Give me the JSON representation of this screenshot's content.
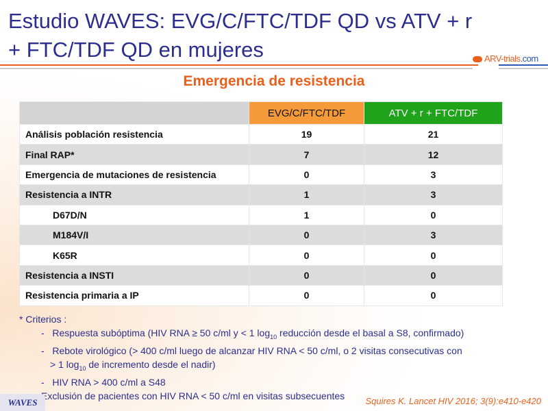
{
  "title": "Estudio WAVES: EVG/C/FTC/TDF QD vs ATV + r + FTC/TDF QD en mujeres",
  "logo": {
    "name": "ARV-trials",
    "suffix": ".com"
  },
  "subtitle": "Emergencia de resistencia",
  "table": {
    "headers": [
      "",
      "EVG/C/FTC/TDF",
      "ATV + r + FTC/TDF"
    ],
    "rows": [
      {
        "label": "Análisis población resistencia",
        "a": "19",
        "b": "21",
        "indent": false
      },
      {
        "label": "Final RAP*",
        "a": "7",
        "b": "12",
        "indent": false
      },
      {
        "label": "Emergencia de mutaciones de resistencia",
        "a": "0",
        "b": "3",
        "indent": false
      },
      {
        "label": "Resistencia a INTR",
        "a": "1",
        "b": "3",
        "indent": false
      },
      {
        "label": "D67D/N",
        "a": "1",
        "b": "0",
        "indent": true
      },
      {
        "label": "M184V/I",
        "a": "0",
        "b": "3",
        "indent": true
      },
      {
        "label": "K65R",
        "a": "0",
        "b": "0",
        "indent": true
      },
      {
        "label": "Resistencia a INSTI",
        "a": "0",
        "b": "0",
        "indent": false
      },
      {
        "label": "Resistencia primaria a IP",
        "a": "0",
        "b": "0",
        "indent": false
      }
    ]
  },
  "notes": {
    "heading": "* Criterios :",
    "item1a": "Respuesta subóptima (HIV RNA ≥ 50 c/ml y < 1 log",
    "item1sub": "10",
    "item1b": " reducción desde el basal a S8, confirmado)",
    "item2a": "Rebote virológico (> 400 c/ml luego de alcanzar HIV RNA < 50 c/ml, o 2 visitas consecutivas con",
    "item2b": "> 1 log",
    "item2sub": "10",
    "item2c": " de incremento desde el nadir)",
    "item3": "HIV RNA > 400 c/ml a S48",
    "exclusion": "Exclusión de pacientes con HIV RNA < 50 c/ml en visitas subsecuentes"
  },
  "footer": {
    "study": "WAVES",
    "citation": "Squires K. Lancet HIV 2016; 3(9):e410-e420"
  }
}
